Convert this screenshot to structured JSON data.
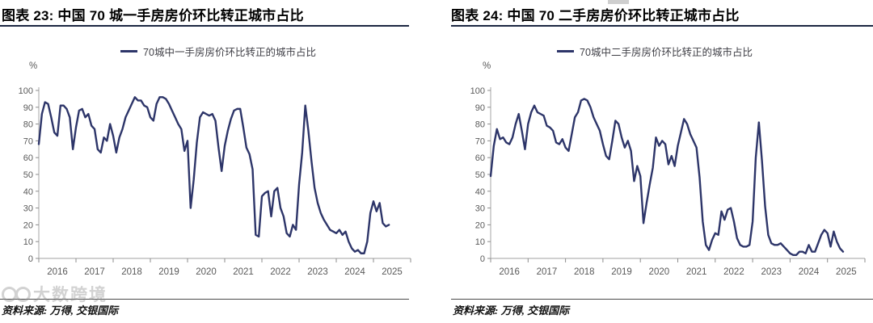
{
  "watermark": {
    "text": "大数跨境"
  },
  "colors": {
    "line": "#2d3569",
    "axis": "#b3b3b3",
    "tick_label": "#595959",
    "title_rule": "#1c2742",
    "footer_rule": "#4a4a4a"
  },
  "charts": [
    {
      "title": "图表 23: 中国 70 城一手房房价环比转正城市占比",
      "legend": "70城中一手房房价环比转正的城市占比",
      "y_unit": "%",
      "source": "资料来源: 万得, 交银国际",
      "chart_data": {
        "type": "line",
        "series_name": "70城中一手房房价环比转正的城市占比",
        "x_monthly_start": "2016-01",
        "x_monthly_end": "2025-06",
        "x_tick_labels": [
          "2016",
          "2017",
          "2018",
          "2019",
          "2020",
          "2021",
          "2022",
          "2023",
          "2024",
          "2025"
        ],
        "ylim": [
          0,
          100
        ],
        "y_ticks": [
          0,
          10,
          20,
          30,
          40,
          50,
          60,
          70,
          80,
          90,
          100
        ],
        "grid": false,
        "legend_position": "top-center",
        "values": [
          68,
          86,
          93,
          92,
          84,
          75,
          73,
          91,
          91,
          89,
          84,
          65,
          78,
          88,
          89,
          84,
          86,
          79,
          77,
          65,
          63,
          72,
          70,
          80,
          73,
          63,
          72,
          77,
          84,
          88,
          92,
          96,
          94,
          94,
          91,
          90,
          84,
          82,
          92,
          96,
          96,
          95,
          92,
          88,
          84,
          80,
          77,
          64,
          70,
          30,
          47,
          69,
          84,
          87,
          86,
          85,
          86,
          82,
          66,
          52,
          67,
          76,
          83,
          88,
          89,
          89,
          78,
          66,
          62,
          53,
          14,
          13,
          37,
          39,
          40,
          25,
          40,
          42,
          30,
          25,
          15,
          13,
          20,
          17,
          44,
          63,
          91,
          76,
          58,
          42,
          33,
          27,
          23,
          20,
          17,
          16,
          15,
          17,
          14,
          16,
          10,
          6,
          4,
          5,
          3,
          3,
          10,
          27,
          34,
          28,
          33,
          21,
          19,
          20
        ]
      }
    },
    {
      "title": "图表 24: 中国 70 二手房房价环比转正城市占比",
      "legend": "70城中二手房房价环比转正的城市占比",
      "y_unit": "%",
      "source": "资料来源: 万得, 交银国际",
      "chart_data": {
        "type": "line",
        "series_name": "70城中二手房房价环比转正的城市占比",
        "x_monthly_start": "2016-01",
        "x_monthly_end": "2025-06",
        "x_tick_labels": [
          "2016",
          "2017",
          "2018",
          "2019",
          "2020",
          "2021",
          "2022",
          "2023",
          "2024",
          "2025"
        ],
        "ylim": [
          0,
          100
        ],
        "y_ticks": [
          0,
          10,
          20,
          30,
          40,
          50,
          60,
          70,
          80,
          90,
          100
        ],
        "grid": false,
        "legend_position": "top-center",
        "values": [
          49,
          67,
          77,
          71,
          72,
          69,
          68,
          72,
          80,
          86,
          76,
          65,
          80,
          87,
          91,
          87,
          86,
          85,
          79,
          78,
          76,
          69,
          68,
          71,
          66,
          64,
          74,
          84,
          87,
          94,
          95,
          94,
          90,
          84,
          80,
          76,
          68,
          61,
          59,
          70,
          82,
          80,
          72,
          66,
          70,
          64,
          46,
          55,
          49,
          21,
          33,
          44,
          54,
          72,
          67,
          70,
          68,
          56,
          61,
          55,
          67,
          75,
          83,
          80,
          74,
          70,
          66,
          48,
          22,
          8,
          5,
          11,
          15,
          14,
          28,
          23,
          29,
          30,
          22,
          12,
          8,
          7,
          7,
          8,
          22,
          60,
          81,
          58,
          31,
          14,
          9,
          8,
          8,
          9,
          7,
          5,
          3,
          2,
          2,
          4,
          4,
          3,
          8,
          4,
          4,
          9,
          14,
          17,
          15,
          7,
          16,
          10,
          6,
          4
        ]
      }
    }
  ]
}
